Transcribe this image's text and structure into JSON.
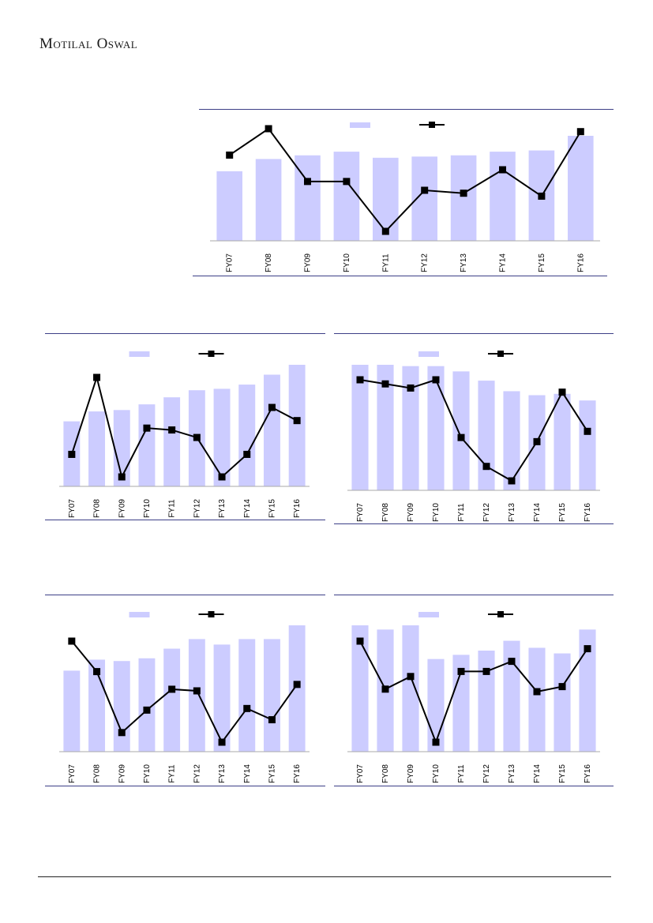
{
  "header": {
    "brand": "Motilal Oswal"
  },
  "colors": {
    "bar": "#ccccff",
    "line": "#000000",
    "rule": "#3c3f87",
    "axis": "#aaaaaa"
  },
  "chart_data": [
    {
      "type": "bar+line",
      "categories": [
        "FY07",
        "FY08",
        "FY09",
        "FY10",
        "FY11",
        "FY12",
        "FY13",
        "FY14",
        "FY15",
        "FY16"
      ],
      "series": [
        {
          "kind": "bar",
          "values": [
            57,
            67,
            70,
            73,
            68,
            69,
            70,
            73,
            74,
            86
          ]
        },
        {
          "kind": "line",
          "marker": "square",
          "values": [
            22,
            31,
            13,
            13,
            -4,
            10,
            9,
            17,
            8,
            30
          ]
        }
      ],
      "legend": "top-center"
    },
    {
      "type": "bar+line",
      "categories": [
        "FY07",
        "FY08",
        "FY09",
        "FY10",
        "FY11",
        "FY12",
        "FY13",
        "FY14",
        "FY15",
        "FY16"
      ],
      "series": [
        {
          "kind": "bar",
          "values": [
            46,
            53,
            54,
            58,
            63,
            68,
            69,
            72,
            79,
            86
          ]
        },
        {
          "kind": "line",
          "marker": "square",
          "values": [
            12,
            53,
            0,
            26,
            25,
            21,
            0,
            12,
            37,
            30
          ]
        }
      ],
      "legend": "top-center"
    },
    {
      "type": "bar+line",
      "categories": [
        "FY07",
        "FY08",
        "FY09",
        "FY10",
        "FY11",
        "FY12",
        "FY13",
        "FY14",
        "FY15",
        "FY16"
      ],
      "series": [
        {
          "kind": "bar",
          "values": [
            95,
            95,
            94,
            94,
            90,
            83,
            75,
            72,
            73,
            68
          ]
        },
        {
          "kind": "line",
          "marker": "square",
          "values": [
            32,
            30,
            28,
            32,
            4,
            -10,
            -17,
            2,
            26,
            7
          ]
        }
      ],
      "legend": "top-center"
    },
    {
      "type": "bar+line",
      "categories": [
        "FY07",
        "FY08",
        "FY09",
        "FY10",
        "FY11",
        "FY12",
        "FY13",
        "FY14",
        "FY15",
        "FY16"
      ],
      "series": [
        {
          "kind": "bar",
          "values": [
            59,
            67,
            66,
            68,
            75,
            82,
            78,
            82,
            82,
            92
          ]
        },
        {
          "kind": "line",
          "marker": "square",
          "values": [
            54,
            35,
            -3,
            11,
            24,
            23,
            -9,
            12,
            5,
            27
          ]
        }
      ],
      "legend": "top-center"
    },
    {
      "type": "bar+line",
      "categories": [
        "FY07",
        "FY08",
        "FY09",
        "FY10",
        "FY11",
        "FY12",
        "FY13",
        "FY14",
        "FY15",
        "FY16"
      ],
      "series": [
        {
          "kind": "bar",
          "values": [
            90,
            87,
            90,
            66,
            69,
            72,
            79,
            74,
            70,
            87
          ]
        },
        {
          "kind": "line",
          "marker": "square",
          "values": [
            28,
            9,
            14,
            -12,
            16,
            16,
            20,
            8,
            10,
            25
          ]
        }
      ],
      "legend": "top-center"
    }
  ]
}
